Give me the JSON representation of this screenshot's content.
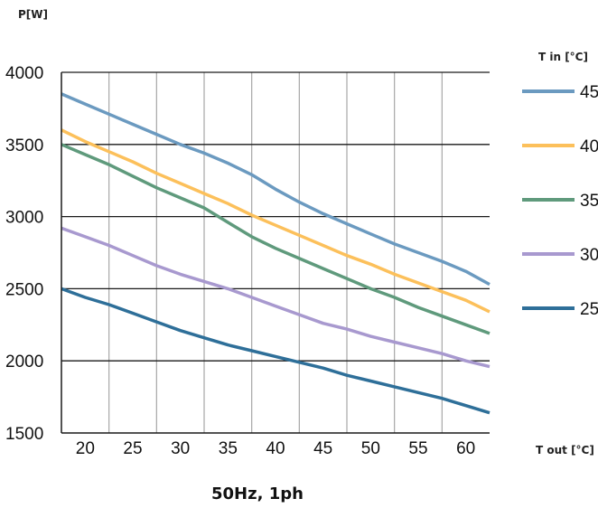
{
  "chart_data": {
    "type": "line",
    "ylabel": "P[W]",
    "xlabel": "T out [°C]",
    "legend_title": "T in [°C]",
    "caption": "50Hz, 1ph",
    "ylim": [
      1500,
      4000
    ],
    "xlim": [
      17.5,
      62.5
    ],
    "yticks": [
      1500,
      2000,
      2500,
      3000,
      3500,
      4000
    ],
    "xticks": [
      20,
      25,
      30,
      35,
      40,
      45,
      50,
      55,
      60
    ],
    "grid": true,
    "legend_position": "right",
    "x": [
      17.5,
      20,
      22.5,
      25,
      27.5,
      30,
      32.5,
      35,
      37.5,
      40,
      42.5,
      45,
      47.5,
      50,
      52.5,
      55,
      57.5,
      60,
      62.5
    ],
    "series": [
      {
        "name": "45",
        "color": "#6b9ac0",
        "values": [
          3850,
          3780,
          3710,
          3640,
          3570,
          3500,
          3440,
          3370,
          3290,
          3190,
          3100,
          3020,
          2950,
          2880,
          2810,
          2750,
          2690,
          2620,
          2530
        ]
      },
      {
        "name": "40",
        "color": "#fcc05b",
        "values": [
          3600,
          3520,
          3450,
          3380,
          3300,
          3230,
          3160,
          3090,
          3010,
          2940,
          2870,
          2800,
          2730,
          2670,
          2600,
          2540,
          2480,
          2420,
          2340
        ]
      },
      {
        "name": "35",
        "color": "#5f9a7c",
        "values": [
          3500,
          3430,
          3360,
          3280,
          3200,
          3130,
          3060,
          2960,
          2860,
          2780,
          2710,
          2640,
          2570,
          2500,
          2440,
          2370,
          2310,
          2250,
          2190
        ]
      },
      {
        "name": "30",
        "color": "#a899cf",
        "values": [
          2920,
          2860,
          2800,
          2730,
          2660,
          2600,
          2550,
          2500,
          2440,
          2380,
          2320,
          2260,
          2220,
          2170,
          2130,
          2090,
          2050,
          2000,
          1960
        ]
      },
      {
        "name": "25",
        "color": "#2e6f99",
        "values": [
          2500,
          2440,
          2390,
          2330,
          2270,
          2210,
          2160,
          2110,
          2070,
          2030,
          1990,
          1950,
          1900,
          1860,
          1820,
          1780,
          1740,
          1690,
          1640
        ]
      }
    ]
  }
}
